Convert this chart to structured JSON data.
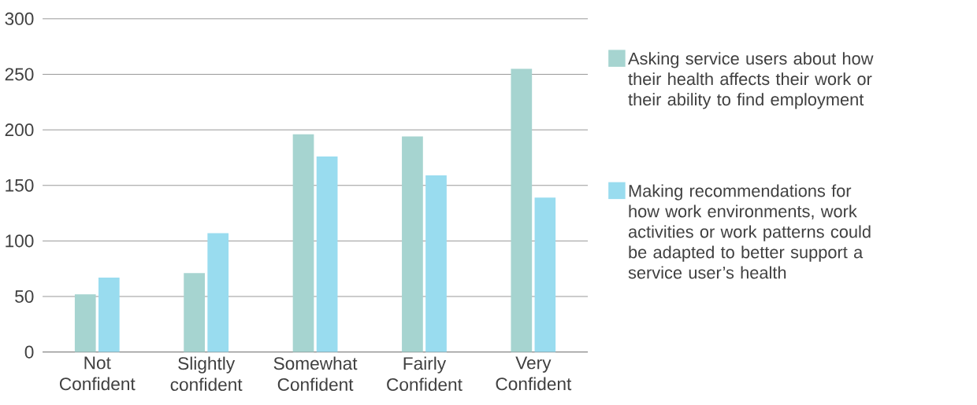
{
  "chart_data": {
    "type": "bar",
    "categories": [
      "Not Confident",
      "Slightly confident",
      "Somewhat Confident",
      "Fairly Confident",
      "Very Confident"
    ],
    "series": [
      {
        "name": "Asking service users about how their health affects their work or their ability to find employment",
        "color": "#a6d4d0",
        "values": [
          52,
          71,
          196,
          194,
          255
        ]
      },
      {
        "name": "Making recommendations for how work environments, work activities or work patterns could be adapted to better support a service user’s health",
        "color": "#99dcef",
        "values": [
          67,
          107,
          176,
          159,
          139
        ]
      }
    ],
    "ylim": [
      0,
      300
    ],
    "yticks": [
      0,
      50,
      100,
      150,
      200,
      250,
      300
    ],
    "grid": "y",
    "legend": "right"
  }
}
